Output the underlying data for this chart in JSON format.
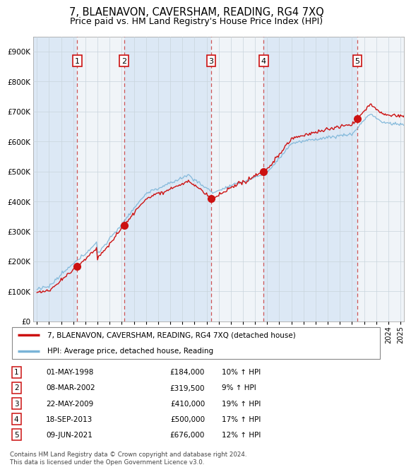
{
  "title": "7, BLAENAVON, CAVERSHAM, READING, RG4 7XQ",
  "subtitle": "Price paid vs. HM Land Registry's House Price Index (HPI)",
  "ylim": [
    0,
    950000
  ],
  "yticks": [
    0,
    100000,
    200000,
    300000,
    400000,
    500000,
    600000,
    700000,
    800000,
    900000
  ],
  "ytick_labels": [
    "£0",
    "£100K",
    "£200K",
    "£300K",
    "£400K",
    "£500K",
    "£600K",
    "£700K",
    "£800K",
    "£900K"
  ],
  "xlim_start": 1994.7,
  "xlim_end": 2025.3,
  "sale_dates": [
    1998.33,
    2002.19,
    2009.38,
    2013.72,
    2021.44
  ],
  "sale_prices": [
    184000,
    319500,
    410000,
    500000,
    676000
  ],
  "sale_labels": [
    "1",
    "2",
    "3",
    "4",
    "5"
  ],
  "sale_pct": [
    "10% ↑ HPI",
    "9% ↑ HPI",
    "19% ↑ HPI",
    "17% ↑ HPI",
    "12% ↑ HPI"
  ],
  "sale_date_strs": [
    "01-MAY-1998",
    "08-MAR-2002",
    "22-MAY-2009",
    "18-SEP-2013",
    "09-JUN-2021"
  ],
  "sale_price_strs": [
    "£184,000",
    "£319,500",
    "£410,000",
    "£500,000",
    "£676,000"
  ],
  "hpi_color": "#7ab4d8",
  "price_color": "#cc1111",
  "dashed_line_color": "#cc4444",
  "band_color_light": "#dce8f5",
  "band_color_white": "#f0f4f8",
  "grid_color": "#cccccc",
  "sale_box_color": "#cc1111",
  "dot_color": "#cc1111",
  "legend_label_price": "7, BLAENAVON, CAVERSHAM, READING, RG4 7XQ (detached house)",
  "legend_label_hpi": "HPI: Average price, detached house, Reading",
  "footer": "Contains HM Land Registry data © Crown copyright and database right 2024.\nThis data is licensed under the Open Government Licence v3.0.",
  "title_fontsize": 10.5,
  "subtitle_fontsize": 9
}
